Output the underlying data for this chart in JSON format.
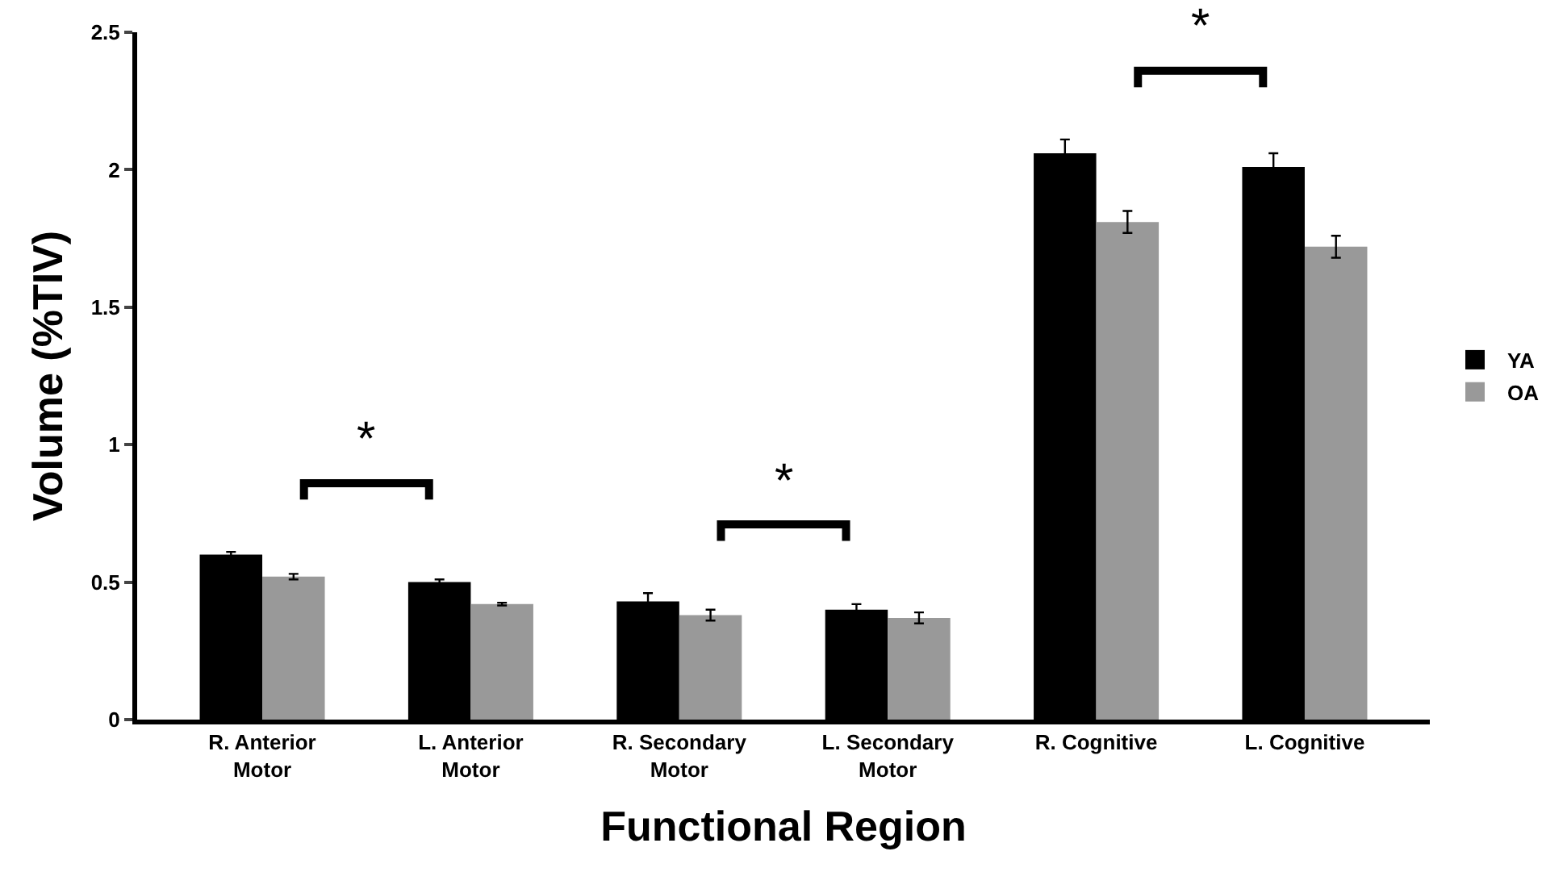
{
  "chart_data": {
    "type": "bar",
    "xlabel": "Functional Region",
    "ylabel": "Volume (%TIV)",
    "categories": [
      "R. Anterior\nMotor",
      "L. Anterior\nMotor",
      "R. Secondary\nMotor",
      "L. Secondary\nMotor",
      "R. Cognitive",
      "L. Cognitive"
    ],
    "series": [
      {
        "name": "YA",
        "color": "#000000",
        "values": [
          0.6,
          0.5,
          0.43,
          0.4,
          2.06,
          2.01
        ],
        "errors": [
          0.01,
          0.01,
          0.03,
          0.02,
          0.05,
          0.05
        ]
      },
      {
        "name": "OA",
        "color": "#999999",
        "values": [
          0.52,
          0.42,
          0.38,
          0.37,
          1.81,
          1.72
        ],
        "errors": [
          0.01,
          0.005,
          0.02,
          0.02,
          0.04,
          0.04
        ]
      }
    ],
    "ylim": [
      0,
      2.5
    ],
    "yticks": [
      0,
      0.5,
      1,
      1.5,
      2,
      2.5
    ],
    "grid": false,
    "legend": "right",
    "annotations": [
      "*",
      "*",
      "*"
    ]
  }
}
